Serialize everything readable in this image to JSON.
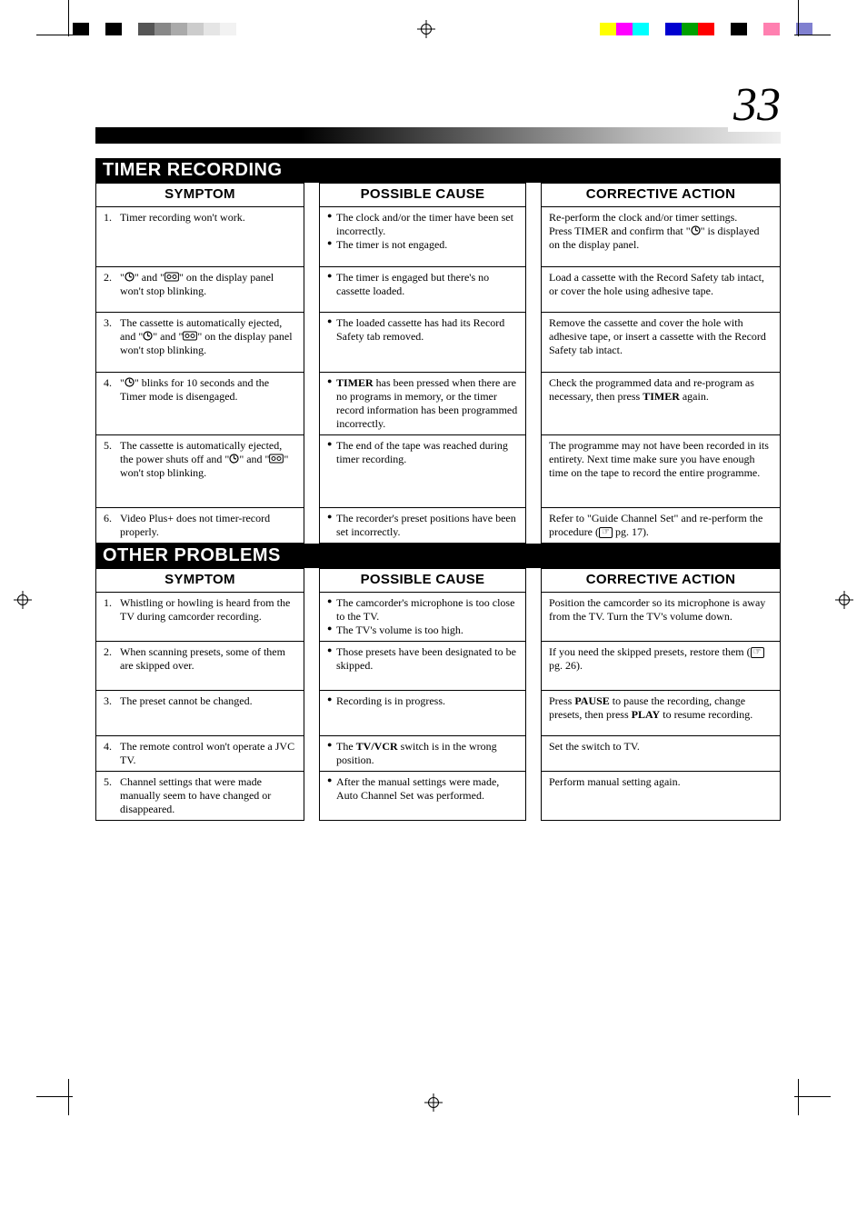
{
  "page_number": "33",
  "top_swatches_left": [
    "#000000",
    "#ffffff",
    "#000000",
    "#ffffff",
    "#555555",
    "#888888",
    "#aaaaaa",
    "#cccccc",
    "#e5e5e5",
    "#f2f2f2",
    "#ffffff"
  ],
  "top_swatches_right": [
    "#ffff00",
    "#ff00ff",
    "#00ffff",
    "#ffffff",
    "#0000d0",
    "#00a000",
    "#ff0000",
    "#ffffff",
    "#000000",
    "#ffffff",
    "#ff80b0",
    "#ffffff",
    "#8080d0"
  ],
  "sections": [
    {
      "title": "TIMER RECORDING",
      "headers": [
        "SYMPTOM",
        "POSSIBLE CAUSE",
        "CORRECTIVE ACTION"
      ],
      "rows": [
        {
          "symptom_num": "1.",
          "symptom_parts": [
            "Timer recording won't work."
          ],
          "cause_bullets": [
            "The clock and/or the timer have been set incorrectly.",
            "The timer is not engaged."
          ],
          "action_html": "Re-perform the clock and/or timer settings.<br>Press TIMER and confirm that \"<span class='icon-clock'><svg width='11' height='11'><circle cx='5.5' cy='5.5' r='4.5' fill='none' stroke='#000' stroke-width='1.2'/><line x1='5.5' y1='5.5' x2='5.5' y2='2.3' stroke='#000' stroke-width='1.2'/><line x1='5.5' y1='5.5' x2='8' y2='6' stroke='#000' stroke-width='1.2'/></svg></span>\" is displayed on the display panel."
        },
        {
          "symptom_num": "2.",
          "symptom_parts": [
            "\"<span class='icon-clock'><svg width='11' height='11'><circle cx='5.5' cy='5.5' r='4.5' fill='none' stroke='#000' stroke-width='1.2'/><line x1='5.5' y1='5.5' x2='5.5' y2='2.3' stroke='#000' stroke-width='1.2'/><line x1='5.5' y1='5.5' x2='8' y2='6' stroke='#000' stroke-width='1.2'/></svg></span>\" and \"<span class='icon-tape'><svg width='16' height='11'><rect x='0.6' y='1' width='14.8' height='9' rx='1.5' fill='none' stroke='#000' stroke-width='1'/><circle cx='5' cy='5.5' r='2' fill='none' stroke='#000' stroke-width='1'/><circle cx='11' cy='5.5' r='2' fill='none' stroke='#000' stroke-width='1'/></svg></span>\" on the display panel won't stop blinking."
          ],
          "cause_bullets": [
            "The timer is engaged but there's no cassette loaded."
          ],
          "action_html": "Load a cassette with the Record Safety tab intact, or cover the hole using adhesive tape."
        },
        {
          "symptom_num": "3.",
          "symptom_parts": [
            "The cassette is automatically ejected, and \"<span class='icon-clock'><svg width='11' height='11'><circle cx='5.5' cy='5.5' r='4.5' fill='none' stroke='#000' stroke-width='1.2'/><line x1='5.5' y1='5.5' x2='5.5' y2='2.3' stroke='#000' stroke-width='1.2'/><line x1='5.5' y1='5.5' x2='8' y2='6' stroke='#000' stroke-width='1.2'/></svg></span>\" and \"<span class='icon-tape'><svg width='16' height='11'><rect x='0.6' y='1' width='14.8' height='9' rx='1.5' fill='none' stroke='#000' stroke-width='1'/><circle cx='5' cy='5.5' r='2' fill='none' stroke='#000' stroke-width='1'/><circle cx='11' cy='5.5' r='2' fill='none' stroke='#000' stroke-width='1'/></svg></span>\" on the display panel won't stop blinking."
          ],
          "cause_bullets": [
            "The loaded cassette has had its Record Safety tab removed."
          ],
          "action_html": "Remove the cassette and cover the hole with adhesive tape, or insert a cassette with the Record Safety tab intact."
        },
        {
          "symptom_num": "4.",
          "symptom_parts": [
            "\"<span class='icon-clock'><svg width='11' height='11'><circle cx='5.5' cy='5.5' r='4.5' fill='none' stroke='#000' stroke-width='1.2'/><line x1='5.5' y1='5.5' x2='5.5' y2='2.3' stroke='#000' stroke-width='1.2'/><line x1='5.5' y1='5.5' x2='8' y2='6' stroke='#000' stroke-width='1.2'/></svg></span>\" blinks for 10 seconds and the Timer mode is disengaged."
          ],
          "cause_bullets": [
            "<span class='bold'>TIMER</span> has been pressed when there are no programs in memory, or the timer record information has been programmed incorrectly."
          ],
          "action_html": "Check the programmed data and re-program as necessary, then press <span class='bold'>TIMER</span> again."
        },
        {
          "symptom_num": "5.",
          "symptom_parts": [
            "The cassette is automatically ejected, the power shuts off and \"<span class='icon-clock'><svg width='11' height='11'><circle cx='5.5' cy='5.5' r='4.5' fill='none' stroke='#000' stroke-width='1.2'/><line x1='5.5' y1='5.5' x2='5.5' y2='2.3' stroke='#000' stroke-width='1.2'/><line x1='5.5' y1='5.5' x2='8' y2='6' stroke='#000' stroke-width='1.2'/></svg></span>\" and \"<span class='icon-tape'><svg width='16' height='11'><rect x='0.6' y='1' width='14.8' height='9' rx='1.5' fill='none' stroke='#000' stroke-width='1'/><circle cx='5' cy='5.5' r='2' fill='none' stroke='#000' stroke-width='1'/><circle cx='11' cy='5.5' r='2' fill='none' stroke='#000' stroke-width='1'/></svg></span>\" won't stop blinking."
          ],
          "cause_bullets": [
            "The end of the tape was reached during timer recording."
          ],
          "action_html": "The programme may not have been recorded in its entirety. Next time make sure you have enough time on the tape to record the entire programme."
        },
        {
          "symptom_num": "6.",
          "symptom_parts": [
            "Video Plus+ does not timer-record properly."
          ],
          "cause_bullets": [
            "The recorder's preset positions have been set incorrectly."
          ],
          "action_html": "Refer to \"Guide Channel Set\" and re-perform the procedure (<span class='ptr'>☞</span> pg. 17)."
        }
      ]
    },
    {
      "title": "OTHER PROBLEMS",
      "headers": [
        "SYMPTOM",
        "POSSIBLE CAUSE",
        "CORRECTIVE ACTION"
      ],
      "rows": [
        {
          "symptom_num": "1.",
          "symptom_parts": [
            "Whistling or howling is heard from the TV during camcorder recording."
          ],
          "cause_bullets": [
            "The camcorder's microphone is too close to the TV.",
            "The TV's volume is too high."
          ],
          "action_html": "Position the camcorder so its microphone is away from the TV. Turn the TV's volume down."
        },
        {
          "symptom_num": "2.",
          "symptom_parts": [
            "When scanning presets, some of them are skipped over."
          ],
          "cause_bullets": [
            "Those presets have been designated to be skipped."
          ],
          "action_html": "If you need the skipped presets, restore them (<span class='ptr'>☞</span> pg. 26)."
        },
        {
          "symptom_num": "3.",
          "symptom_parts": [
            "The preset cannot be changed."
          ],
          "cause_bullets": [
            "Recording is in progress."
          ],
          "action_html": "Press <span class='bold'>PAUSE</span> to pause the recording, change presets, then press <span class='bold'>PLAY</span> to resume recording."
        },
        {
          "symptom_num": "4.",
          "symptom_parts": [
            "The remote control won't operate a JVC TV."
          ],
          "cause_bullets": [
            "The <span class='bold'>TV/VCR</span> switch is in the wrong position."
          ],
          "action_html": "Set the switch to TV."
        },
        {
          "symptom_num": "5.",
          "symptom_parts": [
            "Channel settings that were made manually seem to have changed or disappeared."
          ],
          "cause_bullets": [
            "After the manual settings were made, Auto Channel Set was performed."
          ],
          "action_html": "Perform manual setting again."
        }
      ]
    }
  ],
  "row_min_heights": {
    "s0": [
      66,
      50,
      66,
      66,
      80,
      34
    ],
    "s1": [
      50,
      54,
      50,
      34,
      50
    ]
  }
}
